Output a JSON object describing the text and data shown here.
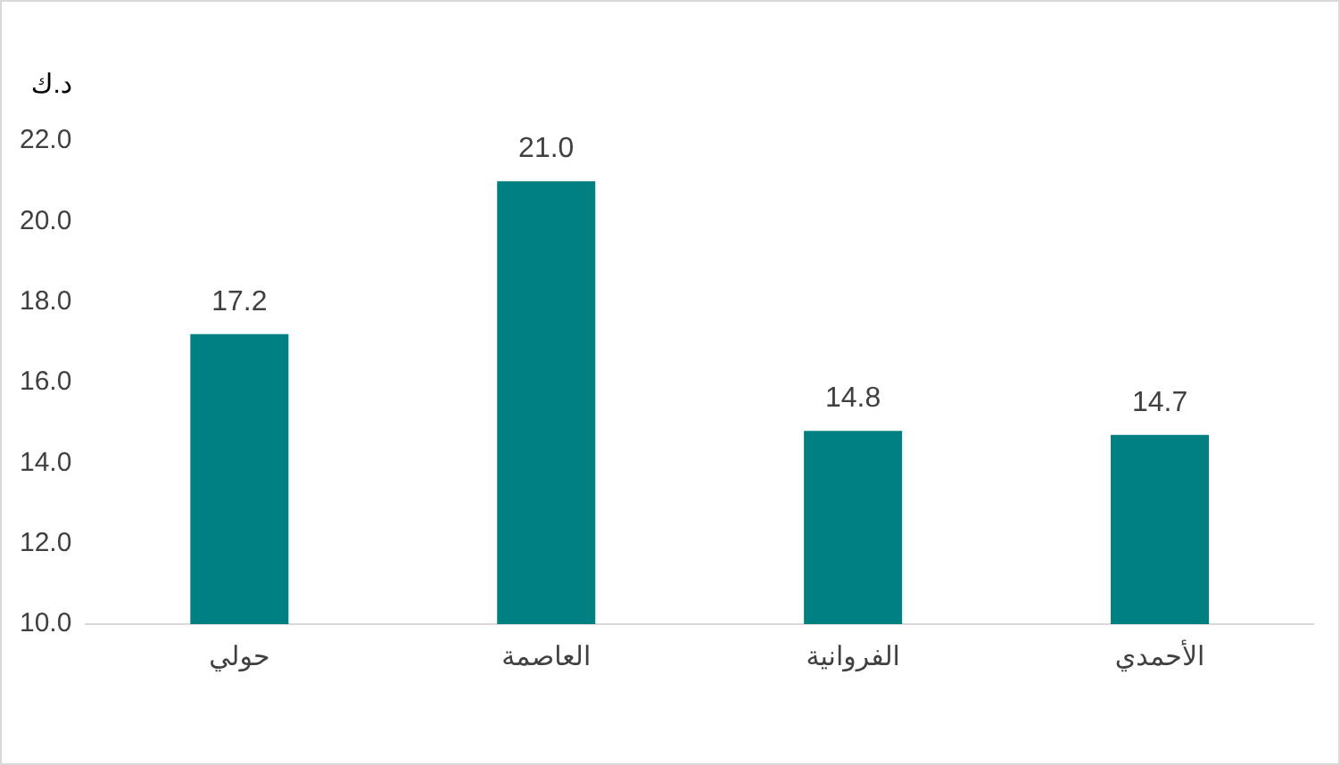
{
  "chart_data": {
    "type": "bar",
    "ylabel": "د.ك",
    "categories": [
      "حولي",
      "العاصمة",
      "الفروانية",
      "الأحمدي"
    ],
    "values": [
      17.2,
      21.0,
      14.8,
      14.7
    ],
    "value_labels": [
      "17.2",
      "21.0",
      "14.8",
      "14.7"
    ],
    "color": "#008080",
    "ylim": [
      10,
      22
    ],
    "yticks": [
      {
        "value": 10,
        "label": "10.0"
      },
      {
        "value": 12,
        "label": "12.0"
      },
      {
        "value": 14,
        "label": "14.0"
      },
      {
        "value": 16,
        "label": "16.0"
      },
      {
        "value": 18,
        "label": "18.0"
      },
      {
        "value": 20,
        "label": "20.0"
      },
      {
        "value": 22,
        "label": "22.0"
      }
    ],
    "grid": false,
    "legend": false
  }
}
